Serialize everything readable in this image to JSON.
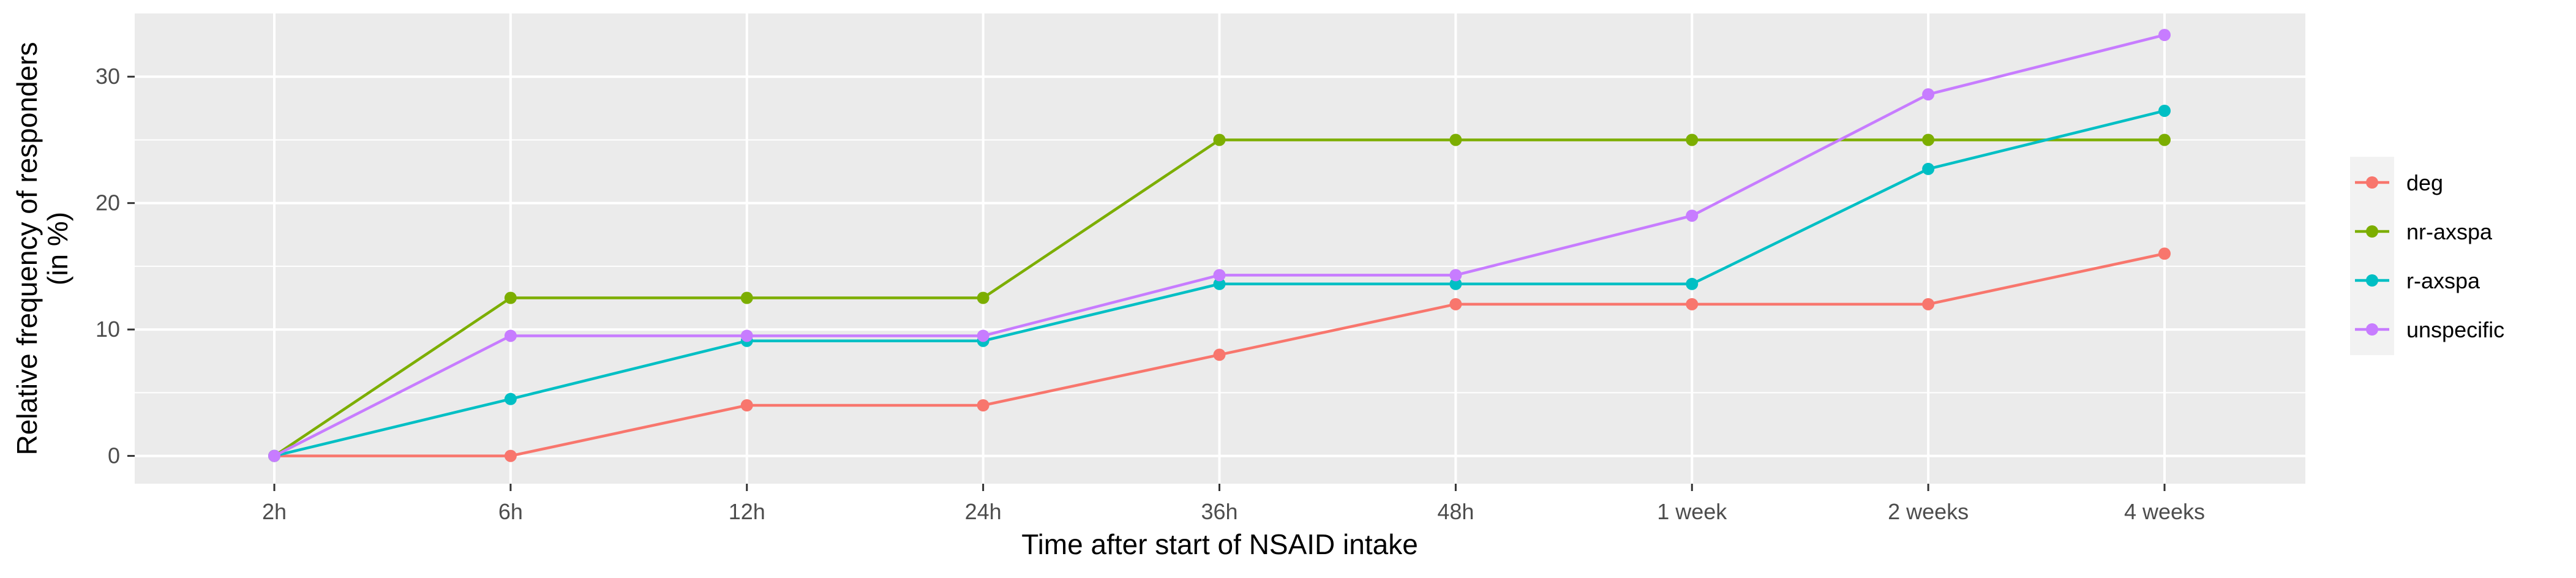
{
  "chart_data": {
    "type": "line",
    "title": "",
    "xlabel": "Time after start of NSAID intake",
    "ylabel_lines": [
      "Relative frequency of responders",
      "(in %)"
    ],
    "categories": [
      "2h",
      "6h",
      "12h",
      "24h",
      "36h",
      "48h",
      "1 week",
      "2 weeks",
      "4 weeks"
    ],
    "ylim": [
      -2.2,
      35
    ],
    "yticks": [
      0,
      10,
      20,
      30
    ],
    "grid": true,
    "legend_position": "right",
    "series": [
      {
        "name": "deg",
        "color": "#F8766D",
        "values": [
          0,
          0,
          4,
          4,
          8,
          12,
          12,
          12,
          16
        ]
      },
      {
        "name": "nr-axspa",
        "color": "#7CAE00",
        "values": [
          0,
          12.5,
          12.5,
          12.5,
          25,
          25,
          25,
          25,
          25
        ]
      },
      {
        "name": "r-axspa",
        "color": "#00BFC4",
        "values": [
          0,
          4.5,
          9.1,
          9.1,
          13.6,
          13.6,
          13.6,
          22.7,
          27.3
        ]
      },
      {
        "name": "unspecific",
        "color": "#C77CFF",
        "values": [
          0,
          9.5,
          9.5,
          9.5,
          14.3,
          14.3,
          19.0,
          28.6,
          33.3
        ]
      }
    ]
  }
}
